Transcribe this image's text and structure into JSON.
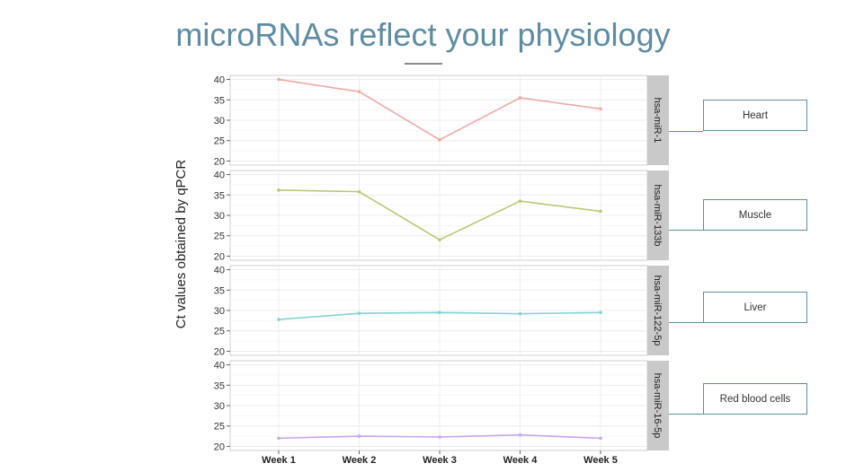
{
  "title": "microRNAs reflect your physiology",
  "chart_data": {
    "type": "line",
    "ylabel": "Ct values obtained by qPCR",
    "xlabel": "",
    "categories": [
      "Week 1",
      "Week 2",
      "Week 3",
      "Week 4",
      "Week 5"
    ],
    "ylim": [
      19,
      41
    ],
    "yticks": [
      20,
      25,
      30,
      35,
      40
    ],
    "grid": true,
    "facets": [
      {
        "label": "hsa-miR-1",
        "color": "#f0a9a5",
        "values": [
          40.0,
          37.0,
          25.2,
          35.5,
          32.8
        ]
      },
      {
        "label": "hsa-miR-133b",
        "color": "#b8c976",
        "values": [
          36.2,
          35.8,
          24.0,
          33.5,
          31.0
        ]
      },
      {
        "label": "hsa-miR-122-5p",
        "color": "#7fd3d6",
        "values": [
          27.8,
          29.3,
          29.5,
          29.2,
          29.5
        ]
      },
      {
        "label": "hsa-miR-16-5p",
        "color": "#c7a6ee",
        "values": [
          22.0,
          22.5,
          22.3,
          22.8,
          22.0
        ]
      }
    ]
  },
  "callouts": [
    "Heart",
    "Muscle",
    "Liver",
    "Red blood cells"
  ],
  "colors": {
    "strip": "#c9c9c9",
    "panel_border": "#cfcfcf",
    "grid": "#ececec",
    "accent": "#5e8ca3"
  }
}
